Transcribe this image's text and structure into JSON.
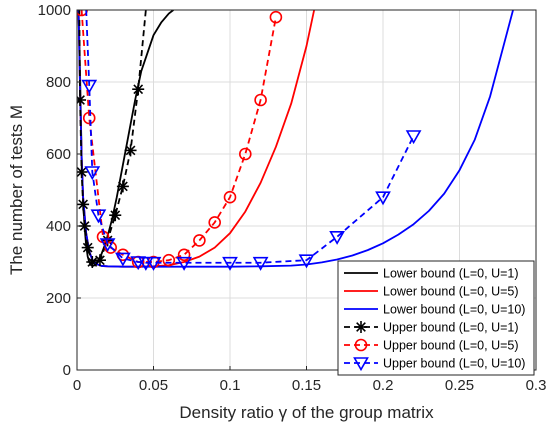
{
  "chart_data": {
    "type": "line",
    "title": "",
    "xlabel": "Density ratio γ of the group matrix",
    "ylabel": "The number of tests M",
    "xlim": [
      0,
      0.3
    ],
    "ylim": [
      0,
      1000
    ],
    "xticks": [
      0,
      0.05,
      0.1,
      0.15,
      0.2,
      0.25,
      0.3
    ],
    "xtick_labels": [
      "0",
      "0.05",
      "0.1",
      "0.15",
      "0.2",
      "0.25",
      "0.3"
    ],
    "yticks": [
      0,
      200,
      400,
      600,
      800,
      1000
    ],
    "ytick_labels": [
      "0",
      "200",
      "400",
      "600",
      "800",
      "1000"
    ],
    "grid": true,
    "legend_position": "bottom-right",
    "series": [
      {
        "name": "Lower bound (L=0, U=1)",
        "color": "#000000",
        "dash": "solid",
        "marker": "none",
        "x": [
          0.001,
          0.002,
          0.003,
          0.004,
          0.005,
          0.006,
          0.007,
          0.008,
          0.009,
          0.01,
          0.011,
          0.012,
          0.014,
          0.016,
          0.018,
          0.02,
          0.023,
          0.026,
          0.03,
          0.034,
          0.038,
          0.042,
          0.046,
          0.05,
          0.055,
          0.06,
          0.063
        ],
        "y": [
          1000,
          820,
          600,
          470,
          395,
          345,
          315,
          300,
          292,
          289,
          290,
          293,
          305,
          322,
          345,
          372,
          420,
          480,
          570,
          660,
          750,
          830,
          880,
          930,
          965,
          990,
          1000
        ]
      },
      {
        "name": "Lower bound (L=0, U=5)",
        "color": "#ff0000",
        "dash": "solid",
        "marker": "none",
        "x": [
          0.001,
          0.002,
          0.003,
          0.004,
          0.006,
          0.008,
          0.01,
          0.013,
          0.016,
          0.02,
          0.03,
          0.04,
          0.05,
          0.06,
          0.07,
          0.08,
          0.09,
          0.1,
          0.11,
          0.12,
          0.13,
          0.14,
          0.15,
          0.155
        ],
        "y": [
          1000,
          780,
          590,
          480,
          380,
          330,
          306,
          294,
          289,
          288,
          287,
          287,
          288,
          291,
          300,
          315,
          340,
          380,
          440,
          520,
          620,
          740,
          900,
          1000
        ]
      },
      {
        "name": "Lower bound (L=0, U=10)",
        "color": "#0000ff",
        "dash": "solid",
        "marker": "none",
        "x": [
          0.001,
          0.002,
          0.003,
          0.004,
          0.006,
          0.008,
          0.01,
          0.013,
          0.016,
          0.02,
          0.03,
          0.05,
          0.08,
          0.1,
          0.12,
          0.14,
          0.15,
          0.16,
          0.17,
          0.18,
          0.19,
          0.2,
          0.21,
          0.22,
          0.23,
          0.24,
          0.25,
          0.26,
          0.27,
          0.28,
          0.285
        ],
        "y": [
          1000,
          780,
          590,
          480,
          380,
          330,
          306,
          294,
          289,
          288,
          287,
          287,
          287,
          287,
          288,
          290,
          293,
          299,
          307,
          318,
          333,
          352,
          376,
          405,
          442,
          490,
          555,
          640,
          760,
          920,
          1000
        ]
      },
      {
        "name": "Upper bound (L=0, U=1)",
        "color": "#000000",
        "dash": "dashed",
        "marker": "asterisk",
        "x": [
          0.0015,
          0.002,
          0.003,
          0.004,
          0.005,
          0.007,
          0.01,
          0.015,
          0.02,
          0.025,
          0.03,
          0.035,
          0.04,
          0.045
        ],
        "y": [
          1000,
          750,
          550,
          460,
          400,
          340,
          300,
          305,
          360,
          430,
          510,
          610,
          780,
          1000
        ]
      },
      {
        "name": "Upper bound (L=0, U=5)",
        "color": "#ff0000",
        "dash": "dashed",
        "marker": "circle",
        "x": [
          0.003,
          0.008,
          0.017,
          0.022,
          0.03,
          0.04,
          0.05,
          0.06,
          0.07,
          0.08,
          0.09,
          0.1,
          0.11,
          0.12,
          0.13
        ],
        "y": [
          1000,
          700,
          370,
          340,
          320,
          300,
          300,
          305,
          320,
          360,
          410,
          480,
          600,
          750,
          980
        ]
      },
      {
        "name": "Upper bound (L=0, U=10)",
        "color": "#0000ff",
        "dash": "dashed",
        "marker": "triangle-down",
        "x": [
          0.006,
          0.008,
          0.01,
          0.014,
          0.02,
          0.03,
          0.04,
          0.045,
          0.05,
          0.07,
          0.1,
          0.12,
          0.15,
          0.17,
          0.2,
          0.22
        ],
        "y": [
          1000,
          790,
          550,
          430,
          350,
          310,
          300,
          298,
          298,
          298,
          298,
          298,
          305,
          370,
          480,
          650
        ]
      }
    ]
  }
}
